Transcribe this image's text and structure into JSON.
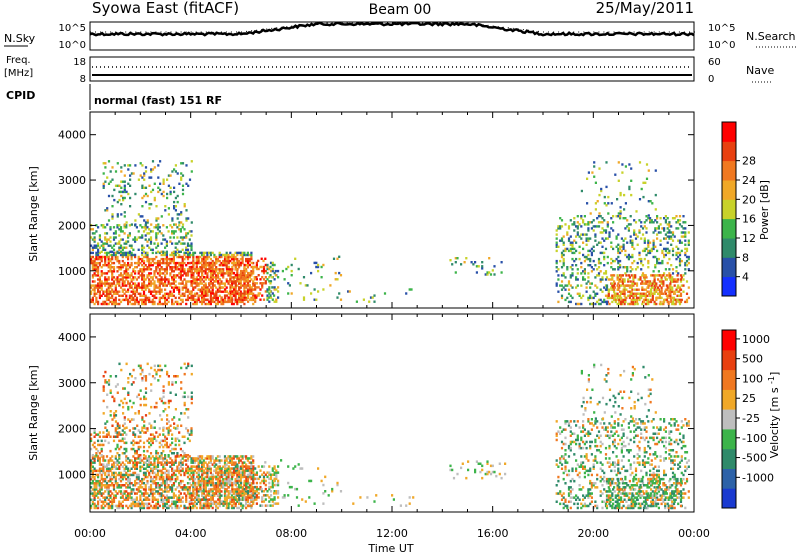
{
  "header": {
    "title": "Syowa East (fitACF)",
    "beam": "Beam 00",
    "date": "25/May/2011"
  },
  "aux_panel": {
    "nsky_label": "N.Sky",
    "nsky_ticks": [
      "10^5",
      "10^0"
    ],
    "nsearch_label": "N.Search",
    "nsearch_ticks": [
      "10^5",
      "10^0"
    ],
    "freq_label": "Freq.",
    "freq_unit": "[MHz]",
    "freq_ticks": [
      "18",
      "8"
    ],
    "nave_label": "Nave",
    "nave_ticks": [
      "60",
      "0"
    ],
    "cpid_label": "CPID",
    "cpid_text": "normal (fast) 151 RF"
  },
  "chart_data": [
    {
      "type": "heatmap",
      "panel": "power",
      "ylabel": "Slant Range [km]",
      "ylim": [
        180,
        4500
      ],
      "yticks": [
        1000,
        2000,
        3000,
        4000
      ],
      "xlim": [
        0,
        24
      ],
      "x_tick_hours": [
        0,
        4,
        8,
        12,
        16,
        20,
        24
      ],
      "colorbar": {
        "label": "Power [dB]",
        "ticks": [
          "4",
          "8",
          "12",
          "16",
          "20",
          "24",
          "28"
        ],
        "colors": [
          "#1430ff",
          "#2850a8",
          "#2f8a6a",
          "#3cb44a",
          "#c8d22a",
          "#f0a828",
          "#f07820",
          "#e84010",
          "#ff0000"
        ]
      }
    },
    {
      "type": "heatmap",
      "panel": "velocity",
      "ylabel": "Slant Range [km]",
      "ylim": [
        180,
        4500
      ],
      "yticks": [
        1000,
        2000,
        3000,
        4000
      ],
      "xlim": [
        0,
        24
      ],
      "x_tick_hours": [
        0,
        4,
        8,
        12,
        16,
        20,
        24
      ],
      "x_tick_labels": [
        "00:00",
        "04:00",
        "08:00",
        "12:00",
        "16:00",
        "20:00",
        "00:00"
      ],
      "xlabel": "Time UT",
      "colorbar": {
        "label": "Velocity [m s^-1]",
        "ticks": [
          "1000",
          "500",
          "100",
          "25",
          "-25",
          "-100",
          "-500",
          "-1000"
        ],
        "colors": [
          "#1a3ad0",
          "#2d62a8",
          "#2f8a6a",
          "#3cb44a",
          "#bebebe",
          "#f0a828",
          "#f07820",
          "#e84010",
          "#ff0000"
        ]
      }
    }
  ]
}
